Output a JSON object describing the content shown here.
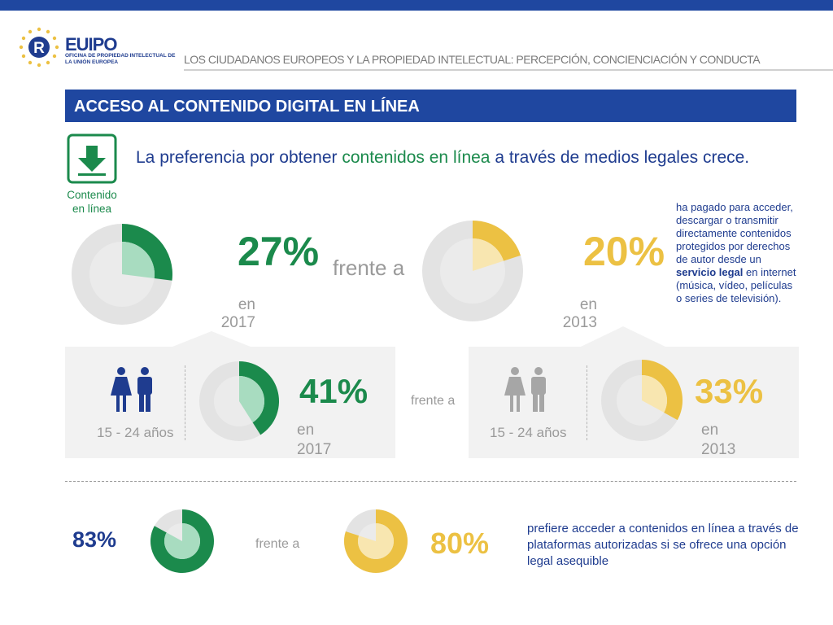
{
  "header": {
    "logo_name": "EUIPO",
    "logo_subtitle": "OFICINA DE PROPIEDAD INTELECTUAL DE LA UNIÓN EUROPEA",
    "title": "LOS CIUDADANOS EUROPEOS Y LA PROPIEDAD INTELECTUAL: PERCEPCIÓN, CONCIENCIACIÓN Y CONDUCTA"
  },
  "section": {
    "title": "ACCESO AL CONTENIDO DIGITAL EN LÍNEA",
    "icon_name": "download-arrow-icon",
    "icon_caption": "Contenido en línea",
    "headline_part1": "La preferencia por obtener ",
    "headline_highlight": "contenidos en línea",
    "headline_part2": " a través de medios legales crece."
  },
  "colors": {
    "brand_blue": "#1f47a0",
    "green": "#1b8a4c",
    "yellow": "#ecc143",
    "gray": "#e3e3e3"
  },
  "labels": {
    "vs": "frente a",
    "age_group": "15 - 24 años",
    "in_2017": "en 2017",
    "in_2013": "en 2013"
  },
  "side_note": {
    "part1": "ha pagado para acceder, descargar o transmitir directamente contenidos protegidos por derechos de autor desde un ",
    "bold": "servicio legal",
    "part2": " en internet (música, vídeo, películas o series de televisión)."
  },
  "bottom_note": "prefiere acceder a contenidos en línea a través de plataformas autorizadas si se ofrece una opción legal asequible",
  "chart_data": [
    {
      "type": "pie",
      "group": "general",
      "categories": [
        "2017",
        "2013"
      ],
      "values": [
        27,
        20
      ],
      "labels": [
        "27%",
        "20%"
      ],
      "colors": [
        "#1b8a4c",
        "#ecc143"
      ]
    },
    {
      "type": "pie",
      "group": "15 - 24 años",
      "categories": [
        "2017",
        "2013"
      ],
      "values": [
        41,
        33
      ],
      "labels": [
        "41%",
        "33%"
      ],
      "colors": [
        "#1b8a4c",
        "#ecc143"
      ]
    },
    {
      "type": "pie",
      "group": "prefiere plataformas autorizadas",
      "categories": [
        "2017",
        "2013"
      ],
      "values": [
        83,
        80
      ],
      "labels": [
        "83%",
        "80%"
      ],
      "colors": [
        "#1b8a4c",
        "#ecc143"
      ]
    }
  ]
}
